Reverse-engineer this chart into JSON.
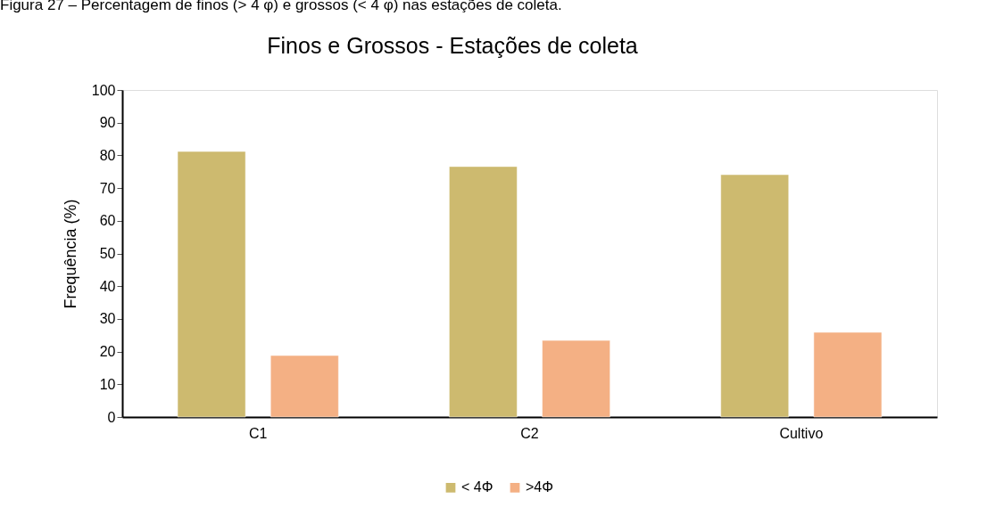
{
  "chart_data": {
    "type": "bar",
    "title": "Finos e Grossos - Estações de coleta",
    "ylabel": "Frequência (%)",
    "annotations": [
      "Figura 27 – Percentagem de finos (> 4 φ) e grossos (< 4 φ) nas estações de coleta."
    ],
    "categories": [
      "C1",
      "C2",
      "Cultivo"
    ],
    "series": [
      {
        "name": "< 4Φ",
        "color": "#cdba6f",
        "values": [
          81.2,
          76.6,
          74.1
        ]
      },
      {
        "name": ">4Φ",
        "color": "#f4b084",
        "values": [
          18.8,
          23.4,
          25.9
        ]
      }
    ],
    "ylim": [
      0,
      100
    ],
    "yticks": [
      0,
      10,
      20,
      30,
      40,
      50,
      60,
      70,
      80,
      90,
      100
    ],
    "grid": false,
    "legend": "bottom"
  }
}
